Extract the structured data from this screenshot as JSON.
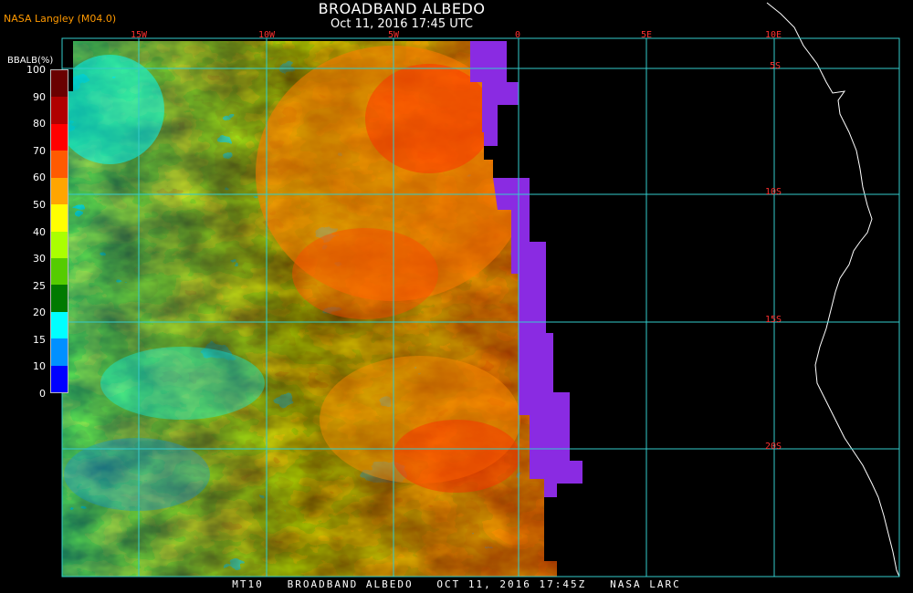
{
  "header": {
    "title": "BROADBAND ALBEDO",
    "subtitle": "Oct 11, 2016 17:45 UTC",
    "producer": "NASA Langley (M04.0)"
  },
  "colorbar": {
    "label": "BBALB(%)",
    "ticks": [
      "100",
      "90",
      "80",
      "70",
      "60",
      "50",
      "40",
      "30",
      "25",
      "20",
      "15",
      "10",
      "0"
    ],
    "colors": [
      "#6a0000",
      "#b00000",
      "#ff0000",
      "#ff5a00",
      "#ffa500",
      "#ffff00",
      "#aaff00",
      "#55cc00",
      "#007a00",
      "#00ffff",
      "#0090ff",
      "#0000ff",
      "#8a2be2"
    ]
  },
  "graticule": {
    "lon_labels": [
      "15W",
      "10W",
      "5W",
      "0",
      "5E",
      "10E"
    ],
    "lat_labels": [
      "5S",
      "10S",
      "15S",
      "20S"
    ],
    "color": "#33cccc"
  },
  "footer": {
    "text": "MT10   BROADBAND ALBEDO   OCT 11, 2016 17:45Z   NASA LARC"
  }
}
